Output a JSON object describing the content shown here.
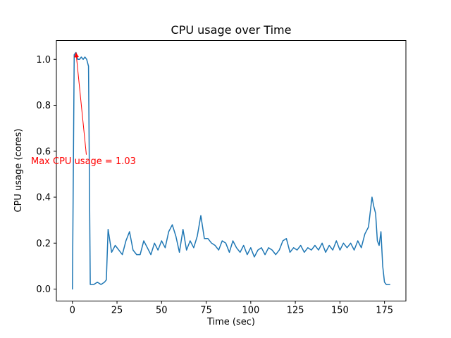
{
  "chart_data": {
    "type": "line",
    "title": "CPU usage over Time",
    "xlabel": "Time (sec)",
    "ylabel": "CPU usage (cores)",
    "xlim": [
      -9,
      187
    ],
    "ylim": [
      -0.052,
      1.082
    ],
    "xticks": [
      0,
      25,
      50,
      75,
      100,
      125,
      150,
      175
    ],
    "xtick_labels": [
      "0",
      "25",
      "50",
      "75",
      "100",
      "125",
      "150",
      "175"
    ],
    "yticks": [
      0.0,
      0.2,
      0.4,
      0.6,
      0.8,
      1.0
    ],
    "ytick_labels": [
      "0.0",
      "0.2",
      "0.4",
      "0.6",
      "0.8",
      "1.0"
    ],
    "grid": false,
    "legend": null,
    "background": "#ffffff",
    "line_color": "#1f77b4",
    "max_value": 1.03,
    "annotation": {
      "text": "Max CPU usage = 1.03",
      "color": "#ff0000",
      "arrow_tip_xy": [
        2,
        1.03
      ],
      "arrow_tail_xy": [
        7.8,
        0.585
      ]
    },
    "x": [
      0,
      1,
      2,
      3,
      4,
      5,
      6,
      7,
      8,
      9,
      10,
      12,
      14,
      16,
      18,
      19,
      20,
      22,
      24,
      26,
      28,
      30,
      32,
      34,
      36,
      38,
      40,
      42,
      44,
      46,
      48,
      50,
      52,
      54,
      56,
      58,
      60,
      62,
      64,
      66,
      68,
      70,
      72,
      74,
      76,
      78,
      80,
      82,
      84,
      86,
      88,
      90,
      92,
      94,
      96,
      98,
      100,
      102,
      104,
      106,
      108,
      110,
      112,
      114,
      116,
      118,
      120,
      122,
      124,
      126,
      128,
      130,
      132,
      134,
      136,
      138,
      140,
      142,
      144,
      146,
      148,
      150,
      152,
      154,
      156,
      158,
      160,
      162,
      164,
      166,
      168,
      169,
      170,
      171,
      172,
      173,
      174,
      175,
      176,
      178
    ],
    "y": [
      0.0,
      1.02,
      1.03,
      1.0,
      1.0,
      1.01,
      1.0,
      1.01,
      1.0,
      0.97,
      0.02,
      0.02,
      0.03,
      0.02,
      0.03,
      0.04,
      0.26,
      0.16,
      0.19,
      0.17,
      0.15,
      0.21,
      0.25,
      0.17,
      0.15,
      0.15,
      0.21,
      0.18,
      0.15,
      0.2,
      0.17,
      0.21,
      0.18,
      0.25,
      0.28,
      0.23,
      0.16,
      0.26,
      0.17,
      0.21,
      0.18,
      0.23,
      0.32,
      0.22,
      0.22,
      0.2,
      0.19,
      0.17,
      0.21,
      0.2,
      0.16,
      0.21,
      0.18,
      0.16,
      0.19,
      0.15,
      0.18,
      0.14,
      0.17,
      0.18,
      0.15,
      0.18,
      0.17,
      0.15,
      0.17,
      0.21,
      0.22,
      0.16,
      0.18,
      0.17,
      0.19,
      0.16,
      0.18,
      0.17,
      0.19,
      0.17,
      0.2,
      0.16,
      0.19,
      0.17,
      0.21,
      0.17,
      0.2,
      0.18,
      0.2,
      0.17,
      0.21,
      0.18,
      0.24,
      0.27,
      0.4,
      0.36,
      0.33,
      0.21,
      0.19,
      0.25,
      0.1,
      0.03,
      0.02,
      0.02
    ]
  }
}
